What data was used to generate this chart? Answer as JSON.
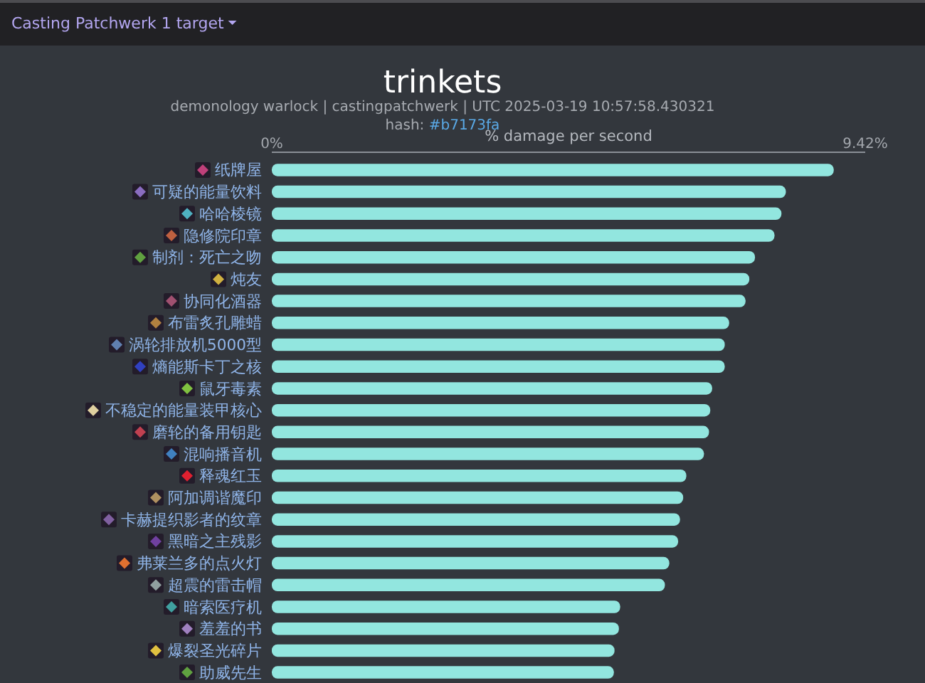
{
  "chart_data": {
    "type": "bar",
    "orientation": "horizontal",
    "title": "trinkets",
    "subtitle": "demonology warlock | castingpatchwerk | UTC 2025-03-19 10:57:58.430321",
    "annotations": [
      "Casting Patchwerk 1 target",
      "hash: #b7173fa"
    ],
    "xlabel": "% damage per second",
    "categories": [
      "纸牌屋",
      "可疑的能量饮料",
      "哈哈棱镜",
      "隐修院印章",
      "制剂：死亡之吻",
      "炖友",
      "协同化酒器",
      "布雷炙孔雕蜡",
      "涡轮排放机5000型",
      "熵能斯卡丁之核",
      "鼠牙毒素",
      "不稳定的能量装甲核心",
      "磨轮的备用钥匙",
      "混响播音机",
      "释魂红玉",
      "阿加调谐魔印",
      "卡赫提织影者的纹章",
      "黑暗之主残影",
      "弗莱兰多的点火灯",
      "超震的雷击帽",
      "暗索医疗机",
      "羞羞的书",
      "爆裂圣光碎片",
      "助威先生"
    ],
    "values": [
      8.92,
      8.16,
      8.09,
      7.98,
      7.67,
      7.58,
      7.52,
      7.26,
      7.19,
      7.19,
      6.99,
      6.96,
      6.94,
      6.86,
      6.58,
      6.53,
      6.48,
      6.45,
      6.31,
      6.24,
      5.53,
      5.51,
      5.44,
      5.43
    ],
    "color": "#92e6df",
    "xlim": [
      0,
      9.42
    ],
    "xticks": [
      {
        "value": 0,
        "label": "0%"
      },
      {
        "value": 9.42,
        "label": "9.42%"
      }
    ]
  }
}
